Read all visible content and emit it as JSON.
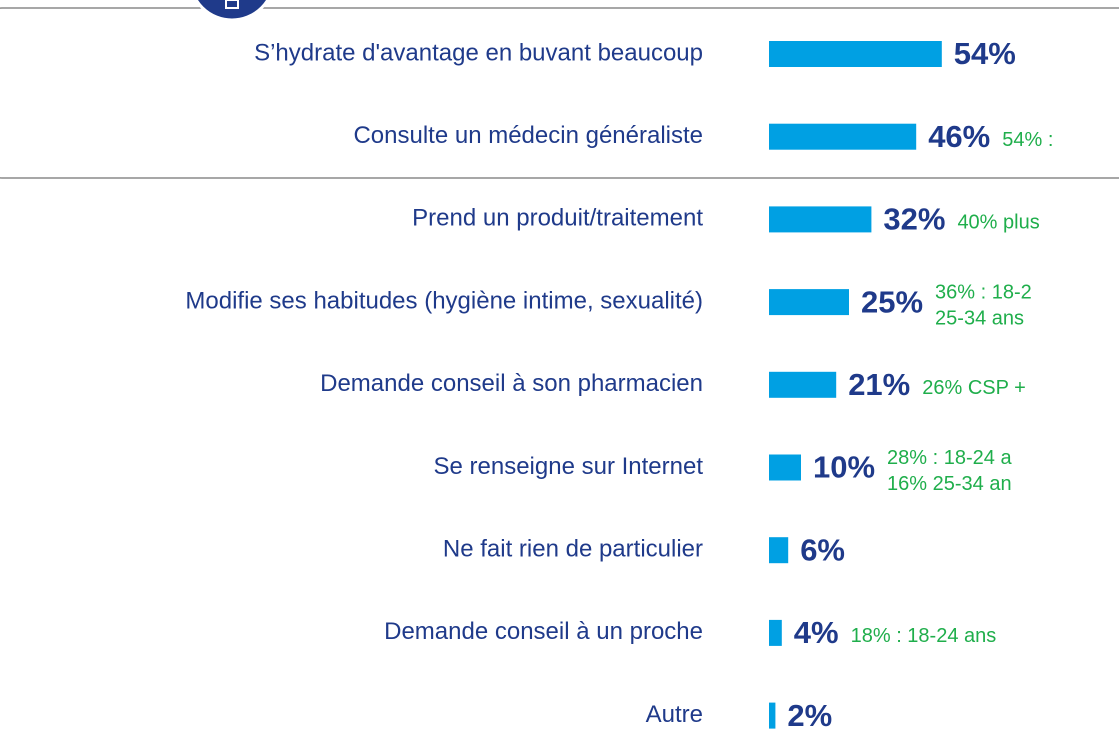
{
  "chart_data": {
    "type": "bar",
    "orientation": "horizontal",
    "categories": [
      "S’hydrate d'avantage en buvant beaucoup",
      "Consulte un médecin généraliste",
      "Prend un produit/traitement",
      "Modifie ses habitudes (hygiène intime, sexualité)",
      "Demande conseil à son pharmacien",
      "Se renseigne sur Internet",
      "Ne fait rien de particulier",
      "Demande conseil à un proche",
      "Autre"
    ],
    "values": [
      54,
      46,
      32,
      25,
      21,
      10,
      6,
      4,
      2
    ],
    "value_labels": [
      "54%",
      "46%",
      "32%",
      "25%",
      "21%",
      "10%",
      "6%",
      "4%",
      "2%"
    ],
    "color": "#00a0e3",
    "xlim": [
      0,
      100
    ],
    "annotations": [
      {
        "index": 1,
        "lines": [
          "54% :"
        ]
      },
      {
        "index": 2,
        "lines": [
          "40% plus"
        ]
      },
      {
        "index": 3,
        "lines": [
          "36% : 18-2",
          "25-34 ans"
        ]
      },
      {
        "index": 4,
        "lines": [
          "26% CSP +"
        ]
      },
      {
        "index": 5,
        "lines": [
          "28% : 18-24 a",
          "16% 25-34 an"
        ]
      },
      {
        "index": 7,
        "lines": [
          "18% : 18-24 ans"
        ]
      }
    ]
  }
}
